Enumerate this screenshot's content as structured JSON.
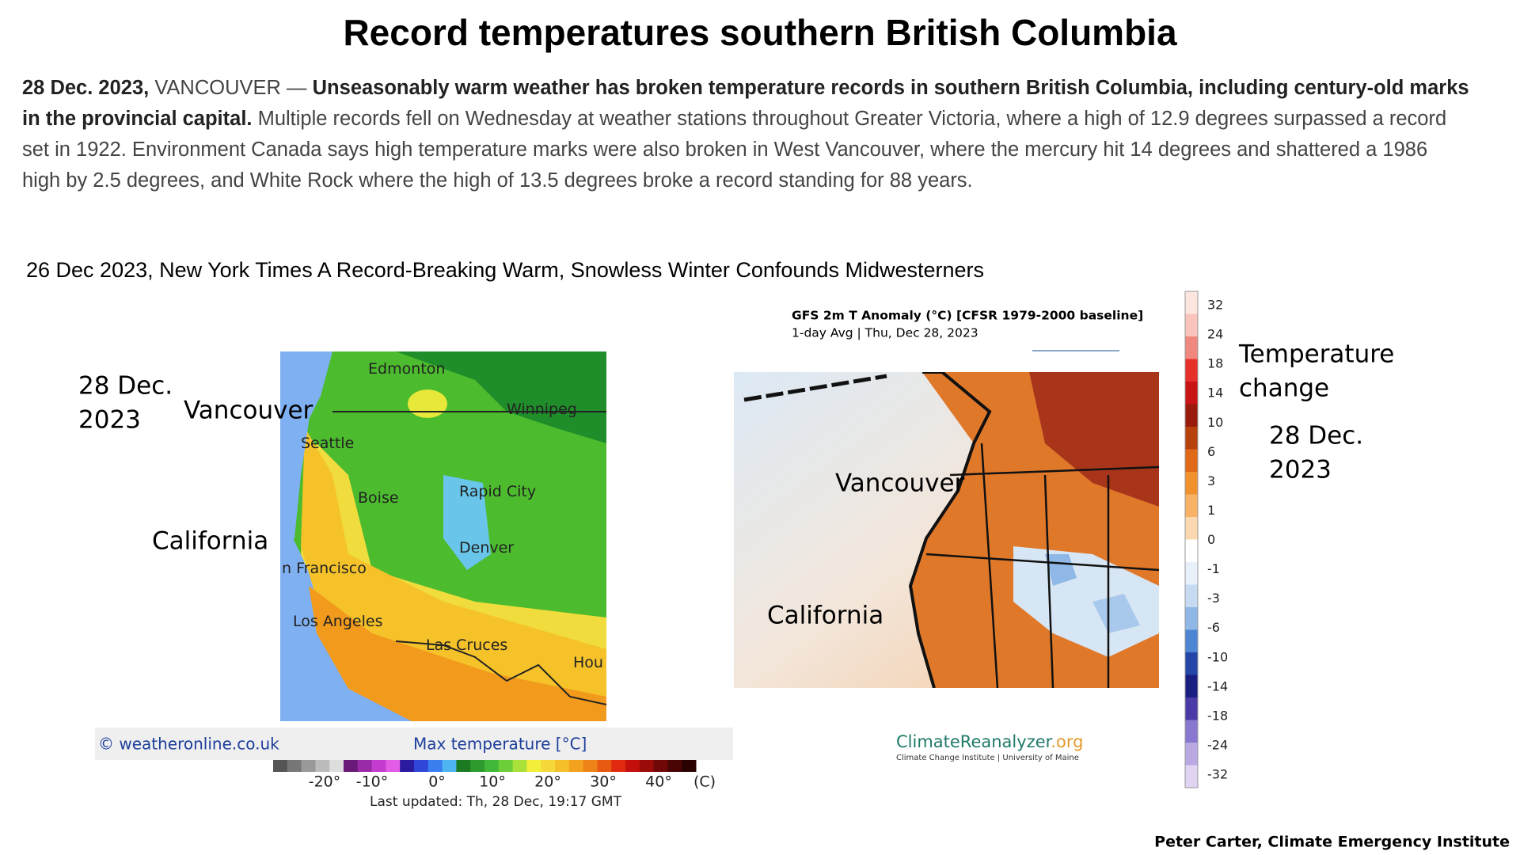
{
  "title": "Record temperatures southern British Columbia",
  "article": {
    "date": "28 Dec. 2023,",
    "location": "VANCOUVER —",
    "lead": "Unseasonably warm weather has broken temperature records in southern British Columbia, including century-old marks in the provincial capital.",
    "body": "Multiple records fell on Wednesday at weather stations throughout Greater Victoria, where a high of 12.9 degrees surpassed a record set in 1922. Environment Canada says high temperature marks were also broken in West Vancouver, where the mercury hit 14 degrees and shattered a 1986 high by 2.5 degrees, and White Rock where the high of 13.5 degrees broke a record standing for 88 years."
  },
  "nyt_line": "26 Dec 2023, New York Times A Record-Breaking Warm, Snowless Winter Confounds Midwesterners",
  "left_map": {
    "date_line1": "28 Dec.",
    "date_line2": "2023",
    "vancouver": "Vancouver",
    "california": "California",
    "cities": [
      "Edmonton",
      "Winnipeg",
      "Seattle",
      "Boise",
      "Rapid City",
      "Denver",
      "n Francisco",
      "Los Angeles",
      "Las Cruces",
      "Hou"
    ],
    "source": "© weatheronline.co.uk",
    "legend_title": "Max temperature [°C]",
    "scale_labels": [
      "-20°",
      "-10°",
      "0°",
      "10°",
      "20°",
      "30°",
      "40°",
      "(C)"
    ],
    "updated": "Last updated: Th, 28 Dec, 19:17 GMT"
  },
  "right_map": {
    "header": "GFS 2m T Anomaly (°C) [CFSR 1979-2000 baseline]",
    "subheader": "1-day Avg | Thu, Dec 28, 2023",
    "vancouver": "Vancouver",
    "california": "California",
    "logo_main": "ClimateReanalyzer",
    "logo_tld": ".org",
    "logo_sub": "Climate Change Institute | University of Maine",
    "scale_ticks": [
      32,
      24,
      18,
      14,
      10,
      6,
      3,
      1,
      0,
      -1,
      -3,
      -6,
      -10,
      -14,
      -18,
      -24,
      -32
    ],
    "scale_title_line1": "Temperature",
    "scale_title_line2": "change",
    "date_line1": "28 Dec.",
    "date_line2": "2023"
  },
  "credit": "Peter Carter, Climate Emergency Institute"
}
